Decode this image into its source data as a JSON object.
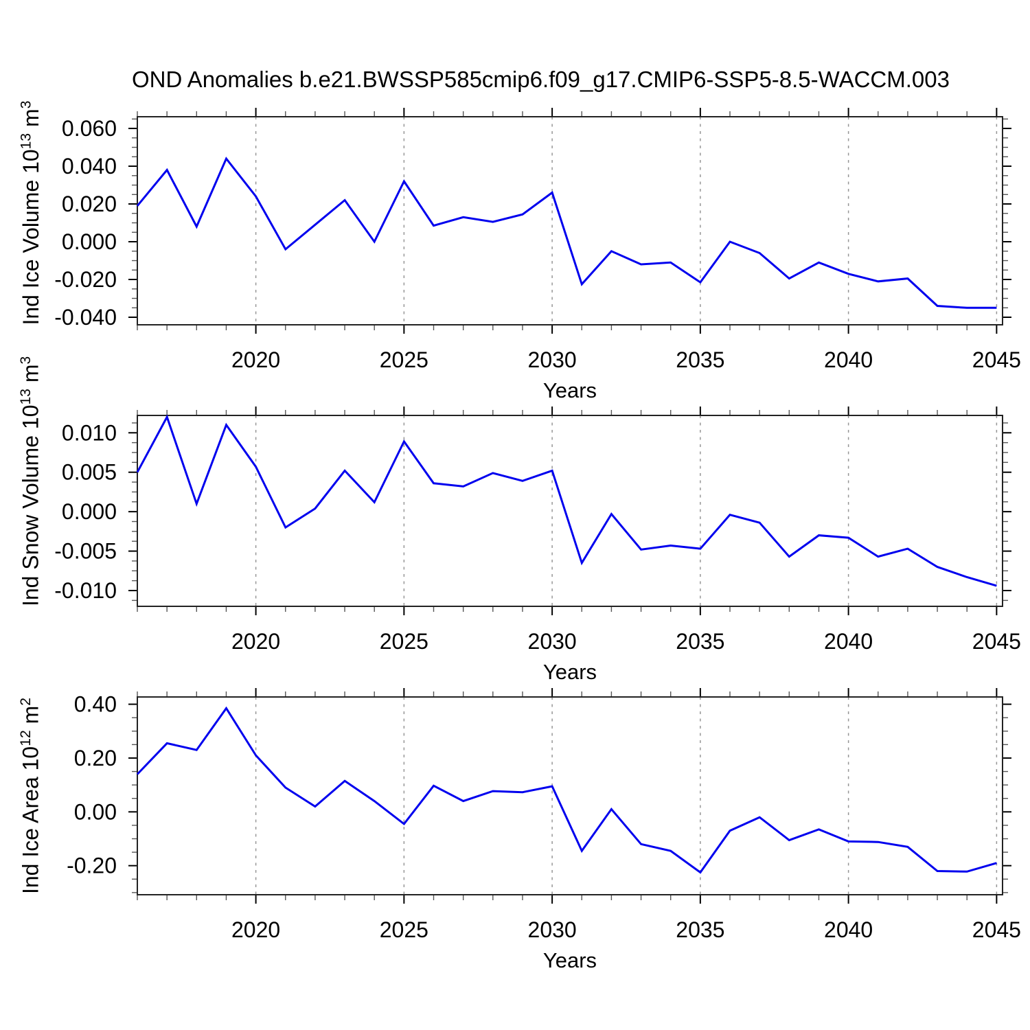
{
  "title": "OND Anomalies b.e21.BWSSP585cmip6.f09_g17.CMIP6-SSP5-8.5-WACCM.003",
  "colors": {
    "line": "#0000ee",
    "axis": "#222222",
    "tick_major": "#000000",
    "tick_minor": "#555555",
    "grid": "#969696",
    "text": "#000000",
    "background": "#ffffff"
  },
  "chart_data": [
    {
      "type": "line",
      "name": "ind-ice-volume",
      "ylabel_text": "Ind Ice Volume 10^13 m^3",
      "ylabel_parts": [
        [
          "Ind Ice Volume 10",
          "t"
        ],
        [
          "13",
          "sup"
        ],
        [
          " m",
          "t"
        ],
        [
          "3",
          "sup"
        ]
      ],
      "xlabel": "Years",
      "x": [
        2016,
        2017,
        2018,
        2019,
        2020,
        2021,
        2022,
        2023,
        2024,
        2025,
        2026,
        2027,
        2028,
        2029,
        2030,
        2031,
        2032,
        2033,
        2034,
        2035,
        2036,
        2037,
        2038,
        2039,
        2040,
        2041,
        2042,
        2043,
        2044,
        2045
      ],
      "values": [
        0.019,
        0.038,
        0.008,
        0.044,
        0.024,
        -0.004,
        0.009,
        0.022,
        0.0,
        0.032,
        0.0085,
        0.013,
        0.0105,
        0.0145,
        0.026,
        -0.0225,
        -0.005,
        -0.012,
        -0.011,
        -0.0215,
        0.0,
        -0.006,
        -0.0195,
        -0.011,
        -0.017,
        -0.021,
        -0.0195,
        -0.034,
        -0.035,
        -0.035
      ],
      "xlim": [
        2016,
        2045.2
      ],
      "ylim": [
        -0.044,
        0.0662
      ],
      "xtick_major": [
        2020,
        2025,
        2030,
        2035,
        2040,
        2045
      ],
      "xtick_labels": [
        "2020",
        "2025",
        "2030",
        "2035",
        "2040",
        "2045"
      ],
      "xtick_minor_step": 1,
      "ytick_major": [
        0.06,
        0.04,
        0.02,
        0.0,
        -0.02,
        -0.04
      ],
      "ytick_labels": [
        "0.060",
        "0.040",
        "0.020",
        "0.000",
        "-0.020",
        "-0.040"
      ],
      "ytick_minor_step": 0.005,
      "grid": "vertical-dashed-at-major-xticks",
      "legend": "none"
    },
    {
      "type": "line",
      "name": "ind-snow-volume",
      "ylabel_text": "Ind Snow Volume 10^13 m^3",
      "ylabel_parts": [
        [
          "Ind Snow Volume 10",
          "t"
        ],
        [
          "13",
          "sup"
        ],
        [
          " m",
          "t"
        ],
        [
          "3",
          "sup"
        ]
      ],
      "xlabel": "Years",
      "x": [
        2016,
        2017,
        2018,
        2019,
        2020,
        2021,
        2022,
        2023,
        2024,
        2025,
        2026,
        2027,
        2028,
        2029,
        2030,
        2031,
        2032,
        2033,
        2034,
        2035,
        2036,
        2037,
        2038,
        2039,
        2040,
        2041,
        2042,
        2043,
        2044,
        2045
      ],
      "values": [
        0.005,
        0.012,
        0.001,
        0.011,
        0.0057,
        -0.002,
        0.0004,
        0.0052,
        0.0012,
        0.0089,
        0.0036,
        0.0032,
        0.0049,
        0.0039,
        0.0052,
        -0.0065,
        -0.0003,
        -0.0048,
        -0.0043,
        -0.0047,
        -0.0004,
        -0.0014,
        -0.0057,
        -0.003,
        -0.0033,
        -0.0057,
        -0.0047,
        -0.007,
        -0.0083,
        -0.0094
      ],
      "xlim": [
        2016,
        2045.2
      ],
      "ylim": [
        -0.012,
        0.0122
      ],
      "xtick_major": [
        2020,
        2025,
        2030,
        2035,
        2040,
        2045
      ],
      "xtick_labels": [
        "2020",
        "2025",
        "2030",
        "2035",
        "2040",
        "2045"
      ],
      "xtick_minor_step": 1,
      "ytick_major": [
        0.01,
        0.005,
        0.0,
        -0.005,
        -0.01
      ],
      "ytick_labels": [
        "0.010",
        "0.005",
        "0.000",
        "-0.005",
        "-0.010"
      ],
      "ytick_minor_step": 0.00125,
      "grid": "vertical-dashed-at-major-xticks",
      "legend": "none"
    },
    {
      "type": "line",
      "name": "ind-ice-area",
      "ylabel_text": "Ind Ice Area 10^12 m^2",
      "ylabel_parts": [
        [
          "Ind Ice Area 10",
          "t"
        ],
        [
          "12",
          "sup"
        ],
        [
          " m",
          "t"
        ],
        [
          "2",
          "sup"
        ]
      ],
      "xlabel": "Years",
      "x": [
        2016,
        2017,
        2018,
        2019,
        2020,
        2021,
        2022,
        2023,
        2024,
        2025,
        2026,
        2027,
        2028,
        2029,
        2030,
        2031,
        2032,
        2033,
        2034,
        2035,
        2036,
        2037,
        2038,
        2039,
        2040,
        2041,
        2042,
        2043,
        2044,
        2045
      ],
      "values": [
        0.14,
        0.255,
        0.23,
        0.385,
        0.21,
        0.09,
        0.02,
        0.115,
        0.04,
        -0.045,
        0.097,
        0.04,
        0.077,
        0.073,
        0.095,
        -0.145,
        0.01,
        -0.12,
        -0.145,
        -0.225,
        -0.07,
        -0.02,
        -0.105,
        -0.065,
        -0.11,
        -0.112,
        -0.13,
        -0.22,
        -0.222,
        -0.19
      ],
      "xlim": [
        2016,
        2045.2
      ],
      "ylim": [
        -0.308,
        0.427
      ],
      "xtick_major": [
        2020,
        2025,
        2030,
        2035,
        2040,
        2045
      ],
      "xtick_labels": [
        "2020",
        "2025",
        "2030",
        "2035",
        "2040",
        "2045"
      ],
      "xtick_minor_step": 1,
      "ytick_major": [
        0.4,
        0.2,
        0.0,
        -0.2
      ],
      "ytick_labels": [
        "0.40",
        "0.20",
        "0.00",
        "-0.20"
      ],
      "ytick_minor_step": 0.05,
      "grid": "vertical-dashed-at-major-xticks",
      "legend": "none"
    }
  ]
}
